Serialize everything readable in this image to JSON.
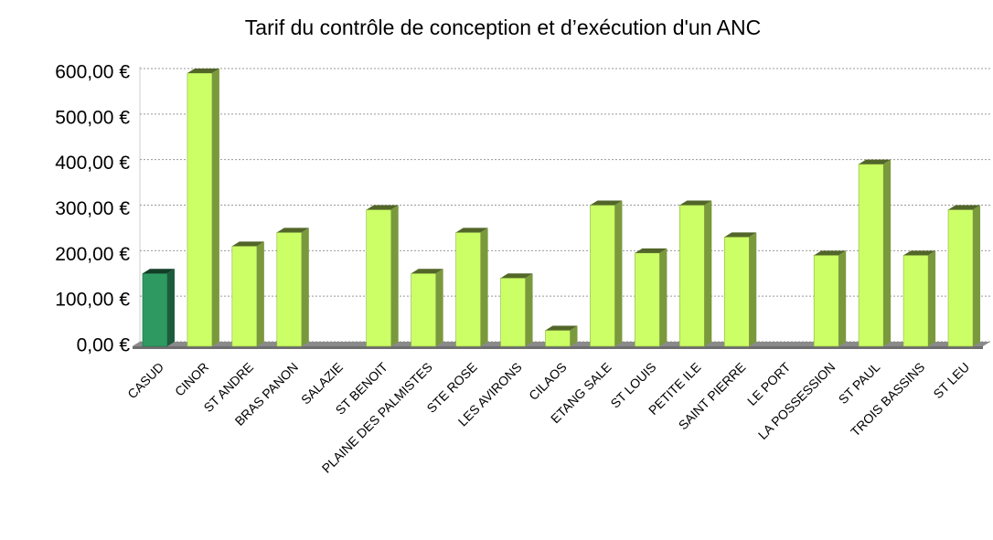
{
  "chart_data": {
    "type": "bar",
    "title": "Tarif du contrôle de conception et d’exécution d'un ANC",
    "categories": [
      "CASUD",
      "CINOR",
      "ST ANDRE",
      "BRAS PANON",
      "SALAZIE",
      "ST BENOIT",
      "PLAINE DES PALMISTES",
      "STE ROSE",
      "LES AVIRONS",
      "CILAOS",
      "ETANG SALE",
      "ST LOUIS",
      "PETITE ILE",
      "SAINT PIERRE",
      "LE PORT",
      "LA POSSESSION",
      "ST PAUL",
      "TROIS BASSINS",
      "ST LEU"
    ],
    "values": [
      160,
      600,
      220,
      250,
      0,
      300,
      160,
      250,
      150,
      35,
      310,
      205,
      310,
      240,
      0,
      200,
      400,
      200,
      300
    ],
    "colors": [
      "#2e9a62",
      "#ccff66",
      "#ccff66",
      "#ccff66",
      "#ccff66",
      "#ccff66",
      "#ccff66",
      "#ccff66",
      "#ccff66",
      "#ccff66",
      "#ccff66",
      "#ccff66",
      "#ccff66",
      "#ccff66",
      "#ccff66",
      "#ccff66",
      "#ccff66",
      "#ccff66",
      "#ccff66"
    ],
    "ylim": [
      0,
      600
    ],
    "yticks": [
      {
        "value": 0,
        "label": "0,00 €"
      },
      {
        "value": 100,
        "label": "100,00 €"
      },
      {
        "value": 200,
        "label": "200,00 €"
      },
      {
        "value": 300,
        "label": "300,00 €"
      },
      {
        "value": 400,
        "label": "400,00 €"
      },
      {
        "value": 500,
        "label": "500,00 €"
      },
      {
        "value": 600,
        "label": "600,00 €"
      }
    ],
    "grid": true
  }
}
